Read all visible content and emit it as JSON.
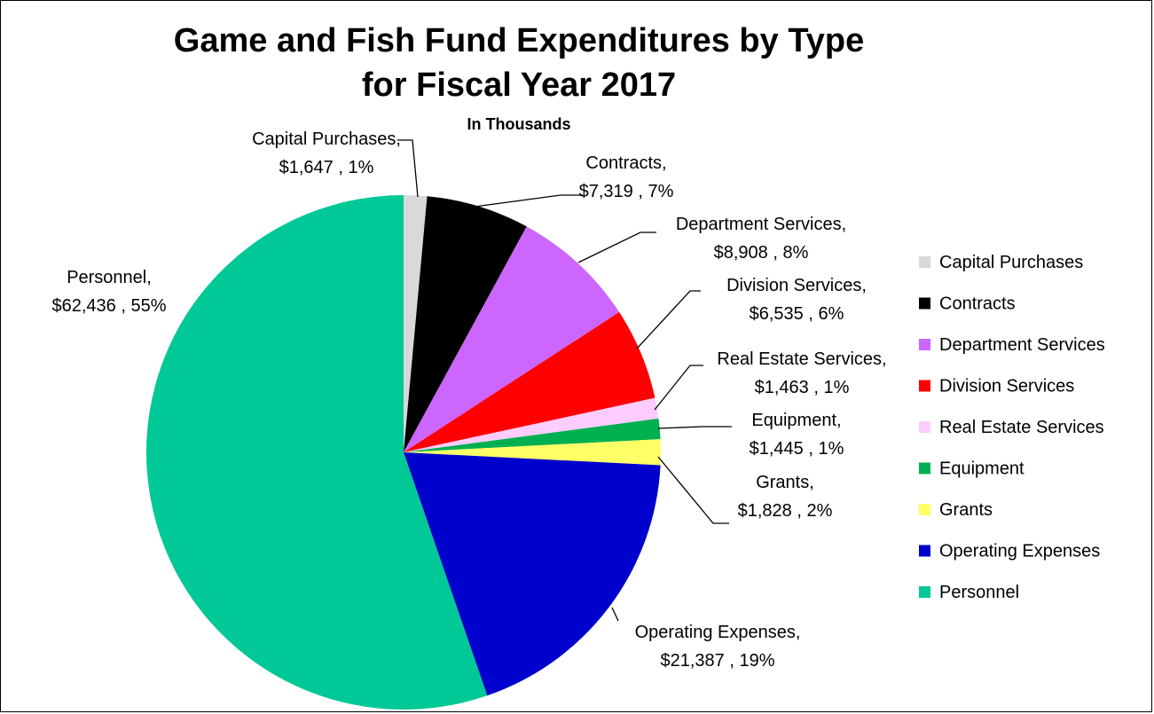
{
  "chart_data": {
    "type": "pie",
    "title_line1": "Game and Fish Fund Expenditures by Type",
    "title_line2": "for Fiscal Year 2017",
    "subtitle": "In Thousands",
    "legend_position": "right",
    "slices": [
      {
        "name": "Capital Purchases",
        "value": 1647,
        "value_label": "$1,647",
        "percent_label": "1%",
        "color": "#d9d9d9"
      },
      {
        "name": "Contracts",
        "value": 7319,
        "value_label": "$7,319",
        "percent_label": "7%",
        "color": "#000000"
      },
      {
        "name": "Department Services",
        "value": 8908,
        "value_label": "$8,908",
        "percent_label": "8%",
        "color": "#cc66ff"
      },
      {
        "name": "Division Services",
        "value": 6535,
        "value_label": "$6,535",
        "percent_label": "6%",
        "color": "#ff0000"
      },
      {
        "name": "Real Estate Services",
        "value": 1463,
        "value_label": "$1,463",
        "percent_label": "1%",
        "color": "#ffccff"
      },
      {
        "name": "Equipment",
        "value": 1445,
        "value_label": "$1,445",
        "percent_label": "1%",
        "color": "#00b050"
      },
      {
        "name": "Grants",
        "value": 1828,
        "value_label": "$1,828",
        "percent_label": "2%",
        "color": "#ffff66"
      },
      {
        "name": "Operating Expenses",
        "value": 21387,
        "value_label": "$21,387",
        "percent_label": "19%",
        "color": "#0000cc"
      },
      {
        "name": "Personnel",
        "value": 62436,
        "value_label": "$62,436",
        "percent_label": "55%",
        "color": "#00c896"
      }
    ]
  }
}
